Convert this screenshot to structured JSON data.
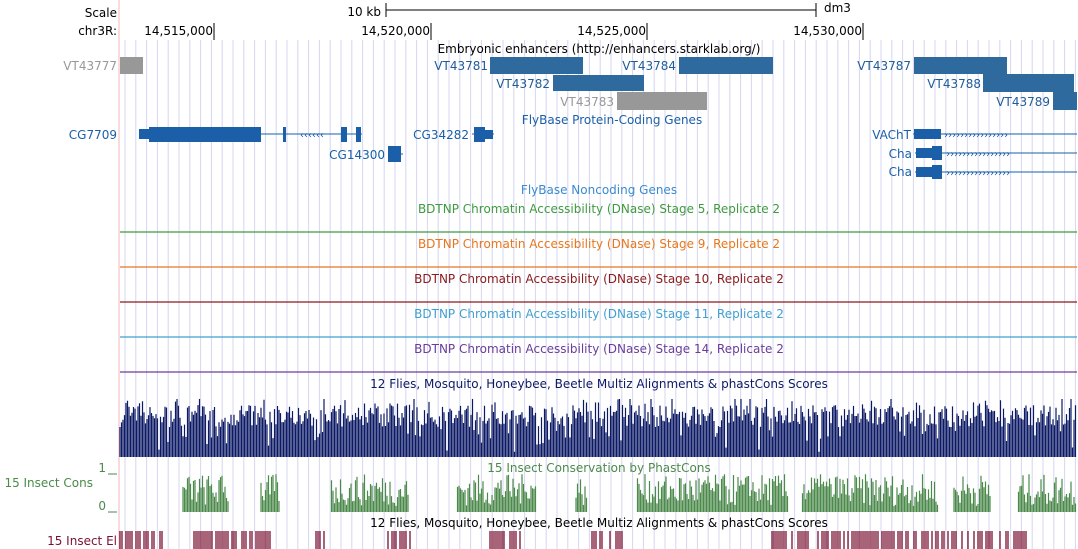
{
  "ruler": {
    "scale_label": "Scale",
    "chrom_label": "chr3R:",
    "scale_bar_label": "10 kb",
    "assembly": "dm3",
    "positions": [
      "14,515,000",
      "14,520,000",
      "14,525,000",
      "14,530,000"
    ]
  },
  "tracks": {
    "enhancers_title": "Embryonic enhancers (http://enhancers.starklab.org/)",
    "enhancers": [
      {
        "name": "VT43777",
        "color": "#989898"
      },
      {
        "name": "VT43781",
        "color": "#2e6a9e"
      },
      {
        "name": "VT43782",
        "color": "#2e6a9e"
      },
      {
        "name": "VT43783",
        "color": "#989898"
      },
      {
        "name": "VT43784",
        "color": "#2e6a9e"
      },
      {
        "name": "VT43787",
        "color": "#2e6a9e"
      },
      {
        "name": "VT43788",
        "color": "#2e6a9e"
      },
      {
        "name": "VT43789",
        "color": "#2e6a9e"
      }
    ],
    "protein_genes_title": "FlyBase Protein-Coding Genes",
    "genes": [
      "CG7709",
      "CG14300",
      "CG34282",
      "VAChT",
      "Cha",
      "Cha"
    ],
    "noncoding_title": "FlyBase Noncoding Genes",
    "dnase": [
      {
        "title": "BDTNP Chromatin Accessibility (DNase) Stage 5, Replicate 2",
        "color": "#3f9a3f"
      },
      {
        "title": "BDTNP Chromatin Accessibility (DNase) Stage 9, Replicate 2",
        "color": "#e8761c"
      },
      {
        "title": "BDTNP Chromatin Accessibility (DNase) Stage 10, Replicate 2",
        "color": "#8b1a1a"
      },
      {
        "title": "BDTNP Chromatin Accessibility (DNase) Stage 11, Replicate 2",
        "color": "#3fa0d0"
      },
      {
        "title": "BDTNP Chromatin Accessibility (DNase) Stage 14, Replicate 2",
        "color": "#6a3d9a"
      }
    ],
    "multiz_title": "12 Flies, Mosquito, Honeybee, Beetle Multiz Alignments & phastCons Scores",
    "phastcons_title": "15 Insect Conservation by PhastCons",
    "cons_label": "15 Insect Cons",
    "cons_scale_max": "1",
    "cons_scale_min": "0",
    "multiz_title_2": "12 Flies, Mosquito, Honeybee, Beetle Multiz Alignments & phastCons Scores",
    "elements_label": "15 Insect El"
  },
  "colors": {
    "gene": "#1a5fa8",
    "enhancer_label": "#1f5c99",
    "multiz": "#0c1a66",
    "cons": "#4b8a4b",
    "elements": "#7a1030",
    "grid": "#d6d6f0",
    "edge": "#f0b8b8"
  }
}
